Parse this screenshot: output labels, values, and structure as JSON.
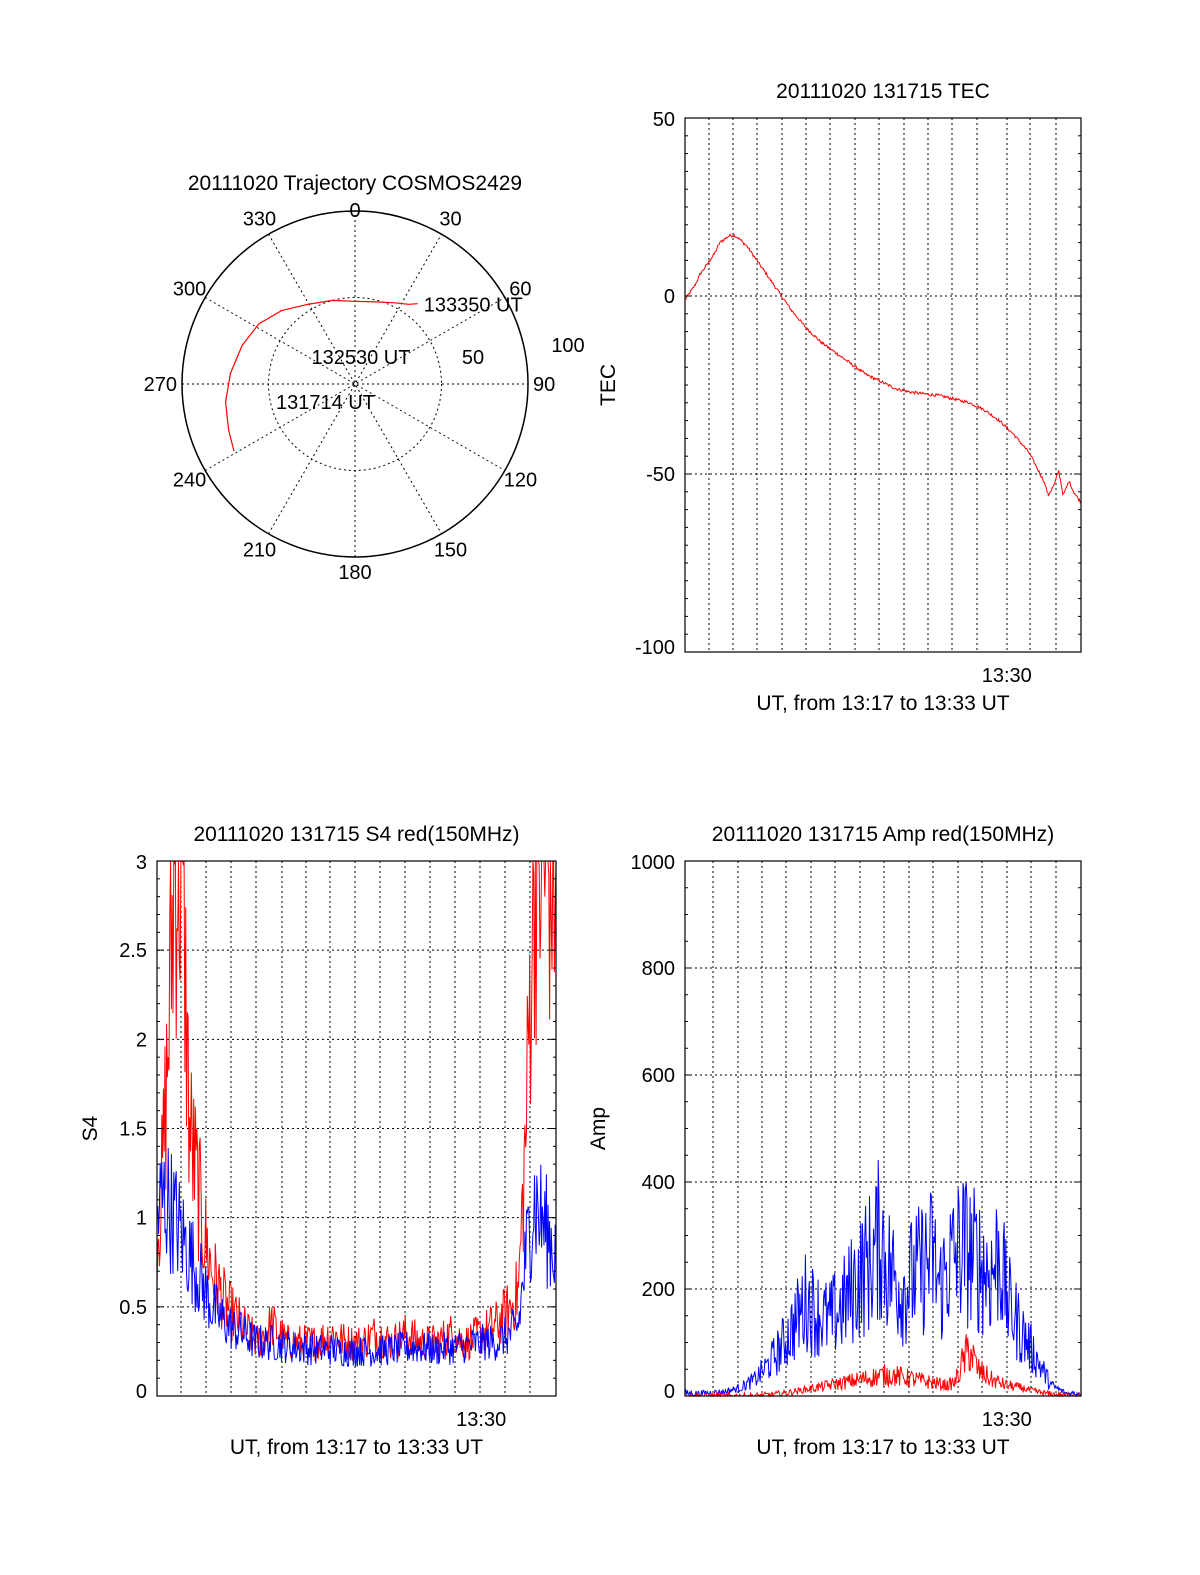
{
  "colors": {
    "primary": "#ff0000",
    "secondary": "#0000ff",
    "axis": "#000000",
    "background": "#ffffff"
  },
  "chart_data": [
    {
      "id": "polar",
      "type": "scatter",
      "title": "20111020 Trajectory COSMOS2429",
      "azimuth_labels": [
        "0",
        "30",
        "60",
        "90",
        "120",
        "150",
        "180",
        "210",
        "240",
        "270",
        "300",
        "330"
      ],
      "radius_labels": [
        "50",
        "100"
      ],
      "grid": true,
      "series": [
        {
          "color": "#ff0000",
          "points": [
            {
              "az": 241,
              "el": 18
            },
            {
              "az": 250,
              "el": 20
            },
            {
              "az": 262,
              "el": 22
            },
            {
              "az": 275,
              "el": 25
            },
            {
              "az": 289,
              "el": 28
            },
            {
              "az": 302,
              "el": 31
            },
            {
              "az": 315,
              "el": 36
            },
            {
              "az": 330,
              "el": 42
            },
            {
              "az": 345,
              "el": 45
            },
            {
              "az": 0,
              "el": 47
            },
            {
              "az": 14,
              "el": 46
            },
            {
              "az": 26,
              "el": 43
            },
            {
              "az": 34,
              "el": 40
            },
            {
              "az": 38,
              "el": 37
            }
          ]
        }
      ],
      "annotations": [
        {
          "text": "133350 UT",
          "az": 38,
          "el": 37
        },
        {
          "text": "132530 UT",
          "az": 12,
          "el": 75
        },
        {
          "text": "131714 UT",
          "az": 258,
          "el": 48
        }
      ]
    },
    {
      "id": "tec",
      "type": "line",
      "title": "20111020 131715 TEC",
      "xlabel": "UT, from 13:17 to 13:33 UT",
      "ylabel": "TEC",
      "xlim": [
        13.2833,
        13.55
      ],
      "ylim": [
        -100,
        50
      ],
      "yticks": [
        "50",
        "0",
        "-50",
        "-100"
      ],
      "xticks": [
        {
          "label": "13:30",
          "value": 13.5
        }
      ],
      "grid": true,
      "series": [
        {
          "color": "#ff0000",
          "x": [
            13.2833,
            13.2867,
            13.29,
            13.2933,
            13.2967,
            13.3,
            13.3033,
            13.3067,
            13.31,
            13.3133,
            13.3167,
            13.32,
            13.325,
            13.33,
            13.3367,
            13.345,
            13.355,
            13.365,
            13.375,
            13.385,
            13.395,
            13.405,
            13.415,
            13.425,
            13.435,
            13.445,
            13.455,
            13.465,
            13.475,
            13.485,
            13.495,
            13.505,
            13.515,
            13.52,
            13.525,
            13.528,
            13.532,
            13.535,
            13.538,
            13.542,
            13.545,
            13.55
          ],
          "y": [
            -1,
            1,
            3,
            6,
            8,
            10,
            12,
            15,
            16,
            17,
            17,
            16,
            14,
            11,
            7,
            2,
            -4,
            -9,
            -13,
            -16,
            -19,
            -22,
            -24,
            -26,
            -27,
            -27.5,
            -28,
            -29,
            -30,
            -32,
            -35,
            -39,
            -44,
            -48,
            -52,
            -56,
            -53,
            -49,
            -56,
            -52,
            -55,
            -58
          ]
        }
      ]
    },
    {
      "id": "s4",
      "type": "line",
      "title": "20111020 131715 S4 red(150MHz)",
      "xlabel": "UT, from 13:17 to 13:33 UT",
      "ylabel": "S4",
      "xlim": [
        13.2833,
        13.55
      ],
      "ylim": [
        0,
        3
      ],
      "yticks": [
        "3",
        "2.5",
        "2",
        "1.5",
        "1",
        "0.5",
        "0"
      ],
      "xticks": [
        {
          "label": "13:30",
          "value": 13.5
        }
      ],
      "grid": true,
      "series": [
        {
          "color": "#ff0000",
          "x": [
            13.2833,
            13.2867,
            13.29,
            13.295,
            13.3,
            13.305,
            13.31,
            13.315,
            13.32,
            13.33,
            13.34,
            13.35,
            13.36,
            13.37,
            13.38,
            13.39,
            13.4,
            13.41,
            13.42,
            13.43,
            13.44,
            13.45,
            13.46,
            13.47,
            13.48,
            13.49,
            13.5,
            13.51,
            13.52,
            13.525,
            13.53,
            13.535,
            13.54,
            13.545,
            13.55
          ],
          "y": [
            0.9,
            1.2,
            1.8,
            3,
            3,
            1.5,
            1.2,
            0.9,
            0.7,
            0.5,
            0.4,
            0.3,
            0.4,
            0.3,
            0.3,
            0.3,
            0.35,
            0.3,
            0.3,
            0.35,
            0.3,
            0.35,
            0.3,
            0.3,
            0.35,
            0.3,
            0.35,
            0.4,
            0.5,
            0.6,
            1.5,
            3,
            3,
            3,
            3
          ]
        },
        {
          "color": "#0000ff",
          "x": [
            13.2833,
            13.2867,
            13.29,
            13.295,
            13.3,
            13.305,
            13.31,
            13.315,
            13.32,
            13.33,
            13.34,
            13.35,
            13.36,
            13.37,
            13.38,
            13.39,
            13.4,
            13.41,
            13.42,
            13.43,
            13.44,
            13.45,
            13.46,
            13.47,
            13.48,
            13.49,
            13.5,
            13.51,
            13.52,
            13.525,
            13.53,
            13.535,
            13.54,
            13.545,
            13.55
          ],
          "y": [
            1.0,
            1.1,
            1.1,
            1.0,
            0.9,
            0.8,
            0.7,
            0.6,
            0.5,
            0.4,
            0.35,
            0.3,
            0.3,
            0.28,
            0.27,
            0.26,
            0.26,
            0.25,
            0.25,
            0.25,
            0.26,
            0.27,
            0.27,
            0.26,
            0.27,
            0.28,
            0.3,
            0.3,
            0.35,
            0.4,
            0.8,
            1.1,
            1.0,
            0.9,
            0.8
          ]
        }
      ]
    },
    {
      "id": "amp",
      "type": "line",
      "title": "20111020 131715 Amp red(150MHz)",
      "xlabel": "UT, from 13:17 to 13:33 UT",
      "ylabel": "Amp",
      "xlim": [
        13.2833,
        13.55
      ],
      "ylim": [
        0,
        1000
      ],
      "yticks": [
        "1000",
        "800",
        "600",
        "400",
        "200",
        "0"
      ],
      "xticks": [
        {
          "label": "13:30",
          "value": 13.5
        }
      ],
      "grid": true,
      "series": [
        {
          "color": "#0000ff",
          "x": [
            13.2833,
            13.295,
            13.31,
            13.32,
            13.33,
            13.34,
            13.35,
            13.36,
            13.365,
            13.37,
            13.38,
            13.39,
            13.4,
            13.41,
            13.415,
            13.42,
            13.43,
            13.44,
            13.45,
            13.455,
            13.46,
            13.47,
            13.48,
            13.49,
            13.495,
            13.5,
            13.51,
            13.52,
            13.53,
            13.54,
            13.55
          ],
          "y": [
            5,
            5,
            8,
            15,
            30,
            60,
            100,
            150,
            180,
            160,
            140,
            170,
            220,
            260,
            300,
            240,
            200,
            230,
            260,
            200,
            240,
            280,
            250,
            230,
            270,
            180,
            120,
            70,
            20,
            5,
            5
          ]
        },
        {
          "color": "#ff0000",
          "x": [
            13.2833,
            13.33,
            13.34,
            13.35,
            13.36,
            13.37,
            13.38,
            13.39,
            13.4,
            13.41,
            13.42,
            13.43,
            13.44,
            13.45,
            13.46,
            13.465,
            13.47,
            13.475,
            13.48,
            13.49,
            13.5,
            13.51,
            13.52,
            13.53,
            13.55
          ],
          "y": [
            0,
            0,
            2,
            5,
            10,
            15,
            20,
            25,
            30,
            35,
            40,
            35,
            30,
            25,
            20,
            25,
            60,
            90,
            50,
            30,
            20,
            15,
            8,
            3,
            0
          ]
        }
      ]
    }
  ]
}
